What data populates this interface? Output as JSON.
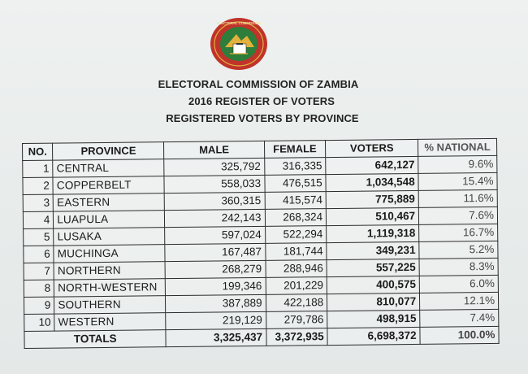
{
  "header": {
    "line1": "ELECTORAL COMMISSION OF ZAMBIA",
    "line2": "2016 REGISTER OF VOTERS",
    "line3": "REGISTERED VOTERS BY PROVINCE",
    "seal_text": "ELECTORAL COMMISSION OF ZAMBIA"
  },
  "colors": {
    "seal_ring": "#c0332b",
    "seal_inner": "#2e7d3a",
    "seal_gold": "#e2b23c"
  },
  "table": {
    "headers": [
      "NO.",
      "PROVINCE",
      "MALE",
      "FEMALE",
      "VOTERS",
      "% NATIONAL"
    ],
    "rows": [
      {
        "no": "1",
        "province": "CENTRAL",
        "male": "325,792",
        "female": "316,335",
        "voters": "642,127",
        "pct": "9.6%"
      },
      {
        "no": "2",
        "province": "COPPERBELT",
        "male": "558,033",
        "female": "476,515",
        "voters": "1,034,548",
        "pct": "15.4%"
      },
      {
        "no": "3",
        "province": "EASTERN",
        "male": "360,315",
        "female": "415,574",
        "voters": "775,889",
        "pct": "11.6%"
      },
      {
        "no": "4",
        "province": "LUAPULA",
        "male": "242,143",
        "female": "268,324",
        "voters": "510,467",
        "pct": "7.6%"
      },
      {
        "no": "5",
        "province": "LUSAKA",
        "male": "597,024",
        "female": "522,294",
        "voters": "1,119,318",
        "pct": "16.7%"
      },
      {
        "no": "6",
        "province": "MUCHINGA",
        "male": "167,487",
        "female": "181,744",
        "voters": "349,231",
        "pct": "5.2%"
      },
      {
        "no": "7",
        "province": "NORTHERN",
        "male": "268,279",
        "female": "288,946",
        "voters": "557,225",
        "pct": "8.3%"
      },
      {
        "no": "8",
        "province": "NORTH-WESTERN",
        "male": "199,346",
        "female": "201,229",
        "voters": "400,575",
        "pct": "6.0%"
      },
      {
        "no": "9",
        "province": "SOUTHERN",
        "male": "387,889",
        "female": "422,188",
        "voters": "810,077",
        "pct": "12.1%"
      },
      {
        "no": "10",
        "province": "WESTERN",
        "male": "219,129",
        "female": "279,786",
        "voters": "498,915",
        "pct": "7.4%"
      }
    ],
    "totals": {
      "label": "TOTALS",
      "male": "3,325,437",
      "female": "3,372,935",
      "voters": "6,698,372",
      "pct": "100.0%"
    }
  }
}
